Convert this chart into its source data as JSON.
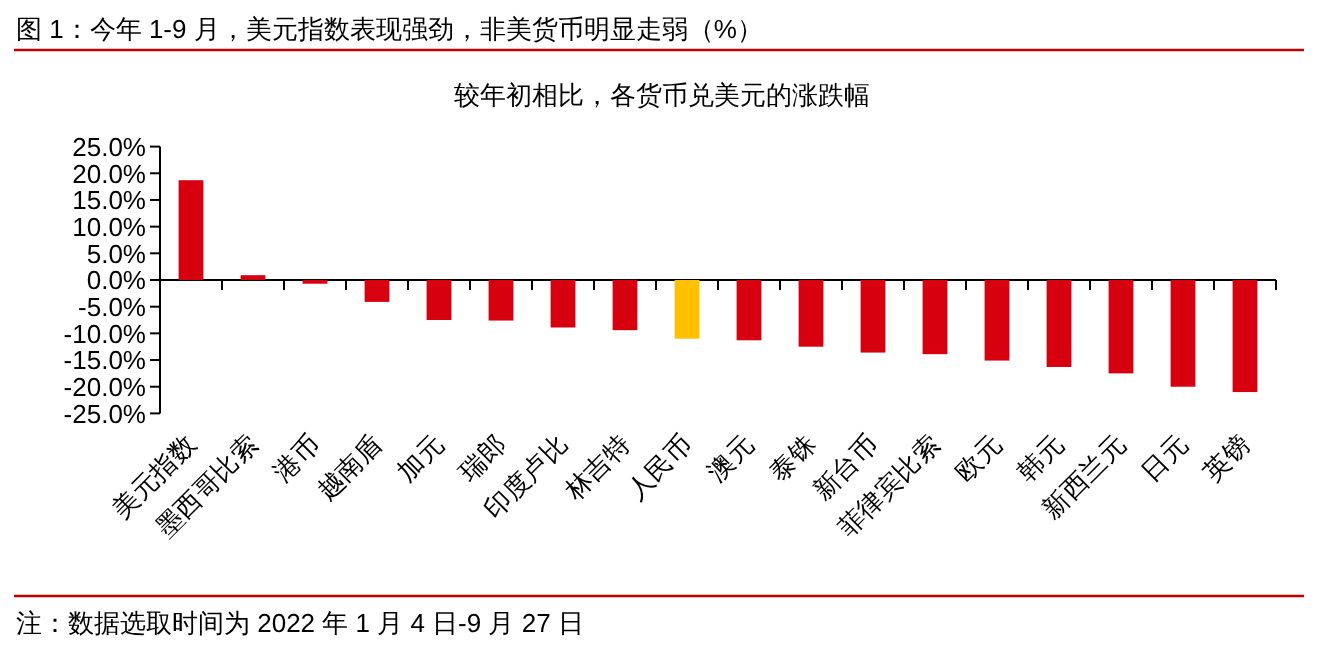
{
  "chart_data": {
    "type": "bar",
    "title": "图 1：今年 1-9 月，美元指数表现强劲，非美货币明显走弱（%）",
    "subtitle": "较年初相比，各货币兑美元的涨跌幅",
    "categories": [
      "美元指数",
      "墨西哥比索",
      "港币",
      "越南盾",
      "加元",
      "瑞郎",
      "印度卢比",
      "林吉特",
      "人民币",
      "澳元",
      "泰铢",
      "新台币",
      "菲律宾比索",
      "欧元",
      "韩元",
      "新西兰元",
      "日元",
      "英镑"
    ],
    "values": [
      18.7,
      0.9,
      -0.7,
      -4.1,
      -7.5,
      -7.6,
      -8.9,
      -9.4,
      -11.0,
      -11.3,
      -12.5,
      -13.6,
      -13.9,
      -15.1,
      -16.3,
      -17.5,
      -20.0,
      -21.0
    ],
    "colors": [
      "#d7000f",
      "#d7000f",
      "#d7000f",
      "#d7000f",
      "#d7000f",
      "#d7000f",
      "#d7000f",
      "#d7000f",
      "#ffc000",
      "#d7000f",
      "#d7000f",
      "#d7000f",
      "#d7000f",
      "#d7000f",
      "#d7000f",
      "#d7000f",
      "#d7000f",
      "#d7000f"
    ],
    "ylim": [
      -25,
      25
    ],
    "yticks": [
      {
        "value": -25,
        "label": "-25.0%"
      },
      {
        "value": -20,
        "label": "-20.0%"
      },
      {
        "value": -15,
        "label": "-15.0%"
      },
      {
        "value": -10,
        "label": "-10.0%"
      },
      {
        "value": -5,
        "label": "-5.0%"
      },
      {
        "value": 0,
        "label": "0.0%"
      },
      {
        "value": 5,
        "label": "5.0%"
      },
      {
        "value": 10,
        "label": "10.0%"
      },
      {
        "value": 15,
        "label": "15.0%"
      },
      {
        "value": 20,
        "label": "20.0%"
      },
      {
        "value": 25,
        "label": "25.0%"
      }
    ],
    "annotations": [
      "注：数据选取时间为 2022 年 1 月 4 日-9 月 27 日"
    ]
  }
}
